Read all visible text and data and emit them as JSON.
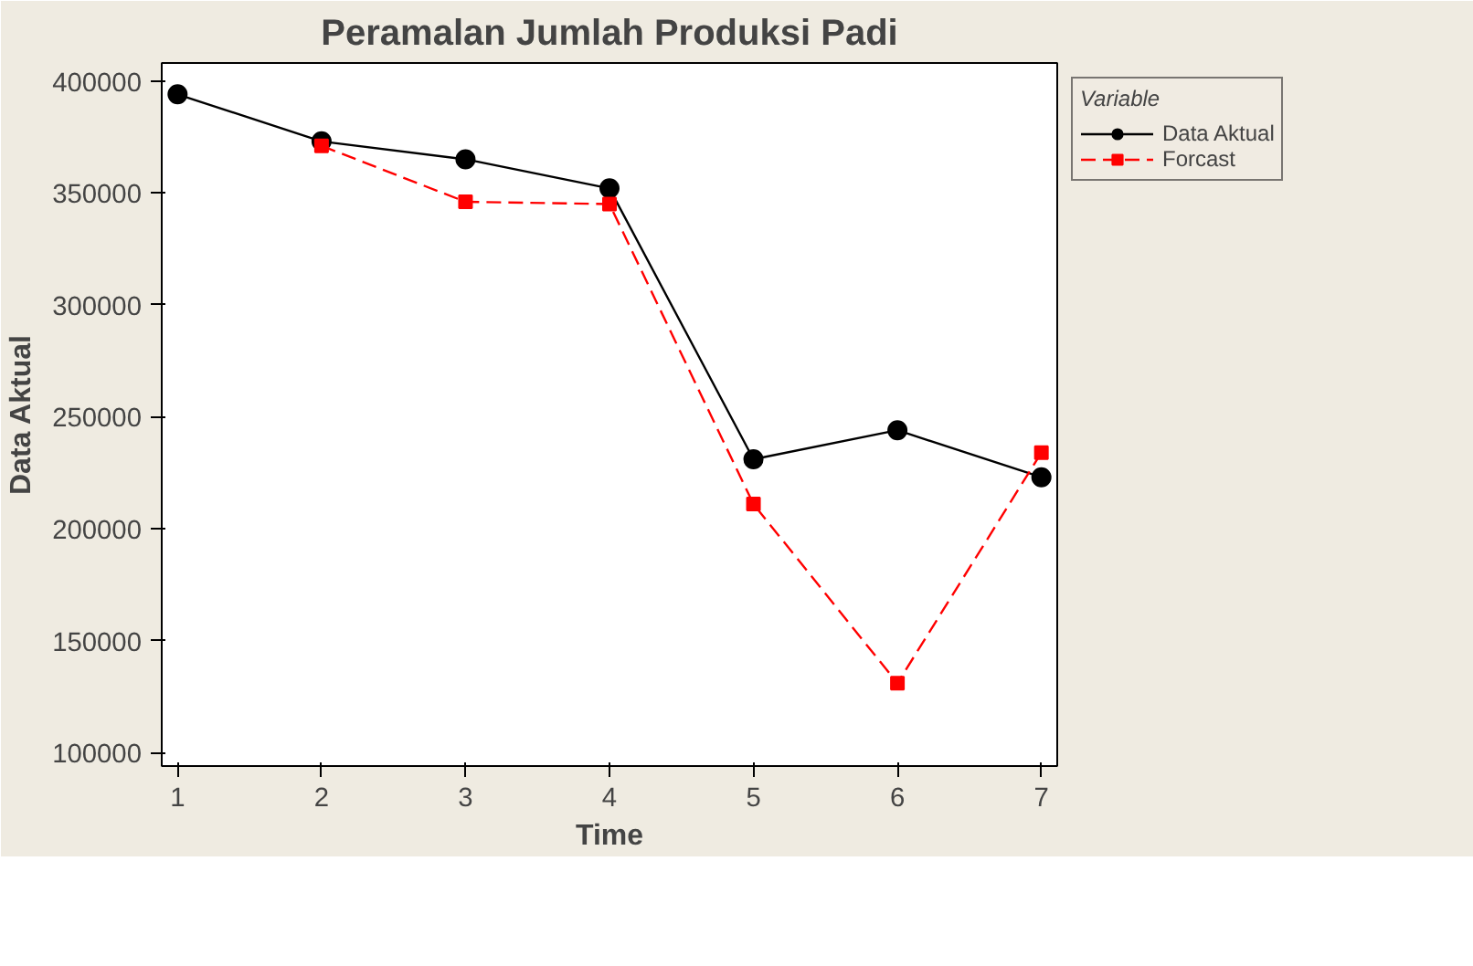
{
  "chart_data": {
    "type": "line",
    "title": "Peramalan Jumlah Produksi Padi",
    "xlabel": "Time",
    "ylabel": "Data Aktual",
    "legend_title": "Variable",
    "legend": "top right",
    "grid": false,
    "x": [
      1,
      2,
      3,
      4,
      5,
      6,
      7
    ],
    "xlim": [
      0.89,
      7.11
    ],
    "xticks": [
      1,
      2,
      3,
      4,
      5,
      6,
      7
    ],
    "ylim": [
      94000,
      408000
    ],
    "yticks": [
      100000,
      150000,
      200000,
      250000,
      300000,
      350000,
      400000
    ],
    "series": [
      {
        "name": "Data Aktual",
        "color": "#000000",
        "marker": "circle",
        "line_style": "solid",
        "values": [
          394000,
          373000,
          365000,
          352000,
          231000,
          244000,
          223000
        ]
      },
      {
        "name": "Forcast",
        "color": "#ff0000",
        "marker": "square",
        "line_style": "dashed",
        "x": [
          2,
          3,
          4,
          5,
          6,
          7
        ],
        "values": [
          371000,
          346000,
          345000,
          211000,
          131000,
          234000
        ]
      }
    ]
  }
}
